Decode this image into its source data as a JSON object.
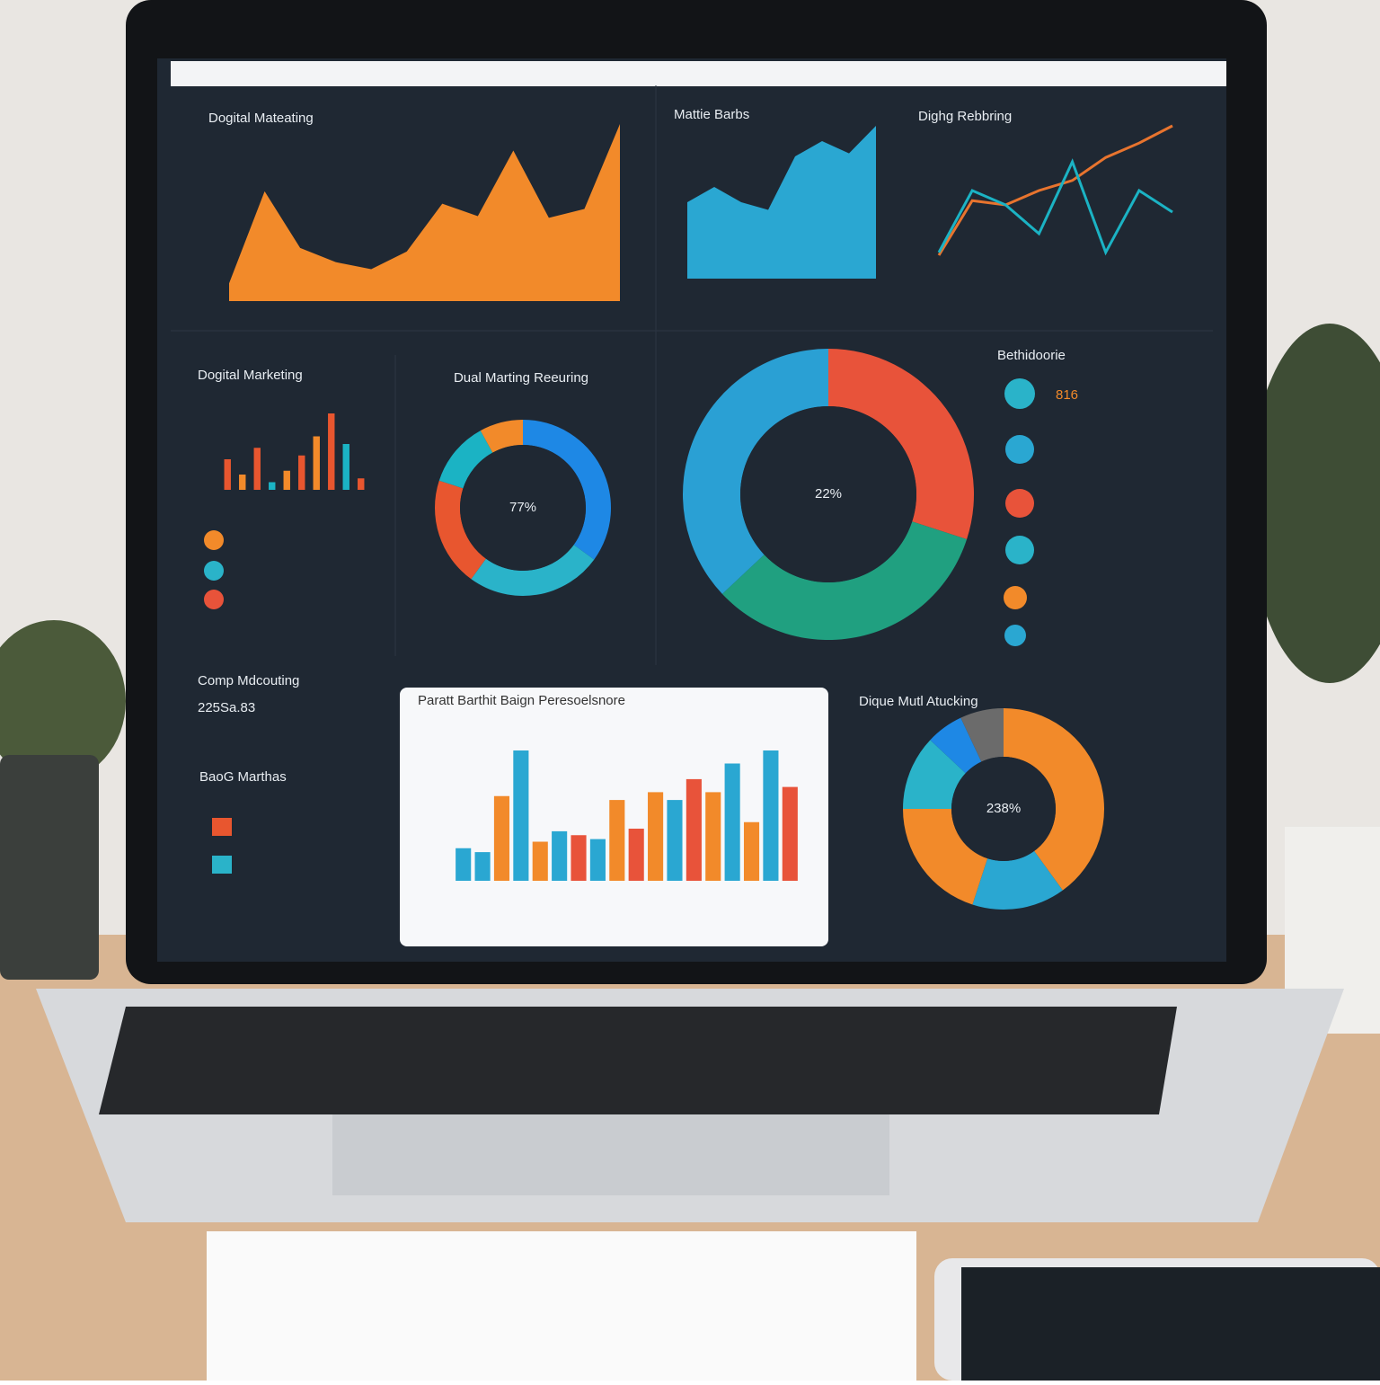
{
  "screen": {
    "area_a": {
      "title": "Dogital Mateating",
      "color": "#f28a2a",
      "ylim": [
        0,
        100
      ],
      "values": [
        10,
        62,
        30,
        22,
        18,
        28,
        55,
        48,
        85,
        47,
        52,
        100
      ]
    },
    "area_b": {
      "title": "Mattie Barbs",
      "color": "#2aa7d2",
      "ylim": [
        0,
        100
      ],
      "values": [
        50,
        60,
        50,
        45,
        80,
        90,
        82,
        100
      ]
    },
    "line": {
      "title": "Dighg Rebbring",
      "ylim": [
        0,
        100
      ],
      "series": [
        {
          "color": "#e8742e",
          "values": [
            10,
            48,
            45,
            55,
            62,
            78,
            88,
            100
          ]
        },
        {
          "color": "#1bb3c4",
          "values": [
            12,
            55,
            45,
            25,
            75,
            12,
            55,
            40
          ]
        }
      ]
    },
    "mini_bars": {
      "title": "Dogital Marketing",
      "ylim": [
        0,
        100
      ],
      "values": [
        40,
        20,
        55,
        10,
        25,
        45,
        70,
        100,
        60,
        15
      ],
      "colors": [
        "#e8562f",
        "#f28a2a",
        "#e8562f",
        "#1bb3c4",
        "#f28a2a",
        "#e8562f",
        "#f28a2a",
        "#e8562f",
        "#1bb3c4",
        "#e8562f"
      ]
    },
    "donut_a": {
      "title": "Dual Marting Reeuring",
      "center": "77%",
      "values": [
        35,
        25,
        20,
        12,
        8
      ],
      "colors": [
        "#1e88e5",
        "#2ab3c9",
        "#e8562f",
        "#1bb3c4",
        "#f28a2a"
      ]
    },
    "donut_b": {
      "center": "22%",
      "values": [
        30,
        33,
        37
      ],
      "colors": [
        "#e8533a",
        "#20a080",
        "#2aa0d4"
      ]
    },
    "stats": {
      "title": "Bethidoorie",
      "value": "816"
    },
    "compare": {
      "title": "Comp Mdcouting",
      "value": "225Sa.83",
      "subtitle": "BaoG Marthas"
    },
    "bar_card": {
      "title": "Paratt Barthit Baign Peresoelsnore",
      "ylim": [
        0,
        100
      ],
      "values": [
        25,
        22,
        65,
        100,
        30,
        38,
        35,
        32,
        62,
        40,
        68,
        62,
        78,
        68,
        90,
        45,
        100,
        72
      ],
      "colors": [
        "#2aa7d2",
        "#2aa7d2",
        "#f28a2a",
        "#2aa7d2",
        "#f28a2a",
        "#2aa7d2",
        "#e8533a",
        "#2aa7d2",
        "#f28a2a",
        "#e8533a",
        "#f28a2a",
        "#2aa7d2",
        "#e8533a",
        "#f28a2a",
        "#2aa7d2",
        "#f28a2a",
        "#2aa7d2",
        "#e8533a"
      ]
    },
    "donut_c": {
      "title": "Dique Mutl Atucking",
      "center": "238%",
      "values": [
        40,
        15,
        20,
        12,
        6,
        7
      ],
      "colors": [
        "#f28a2a",
        "#2aa7d2",
        "#f28a2a",
        "#2ab3c9",
        "#1e88e5",
        "#6b6b6b"
      ]
    }
  }
}
